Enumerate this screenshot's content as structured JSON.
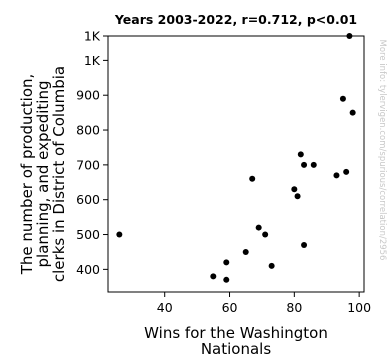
{
  "watermark": "More info: tylervigen.com/spurious/correlation/2956",
  "chart_data": {
    "type": "scatter",
    "title": "Years 2003-2022, r=0.712, p<0.01",
    "xlabel": [
      "Wins for the Washington",
      "Nationals"
    ],
    "ylabel": [
      "The number of production,",
      "planning, and expediting",
      "clerks in District of Columbia"
    ],
    "xlim": [
      22.5,
      101.5
    ],
    "ylim": [
      335,
      1070
    ],
    "xticks": [
      {
        "value": 40,
        "label": "40"
      },
      {
        "value": 60,
        "label": "60"
      },
      {
        "value": 80,
        "label": "80"
      },
      {
        "value": 100,
        "label": "100"
      }
    ],
    "yticks": [
      {
        "value": 400,
        "label": "400"
      },
      {
        "value": 500,
        "label": "500"
      },
      {
        "value": 600,
        "label": "600"
      },
      {
        "value": 700,
        "label": "700"
      },
      {
        "value": 800,
        "label": "800"
      },
      {
        "value": 900,
        "label": "900"
      },
      {
        "value": 1000,
        "label": "1K"
      },
      {
        "value": 1100,
        "label": "1K"
      }
    ],
    "grid": false,
    "marker_color": "#000000",
    "points": [
      {
        "x": 26,
        "y": 500
      },
      {
        "x": 55,
        "y": 380
      },
      {
        "x": 59,
        "y": 370
      },
      {
        "x": 59,
        "y": 420
      },
      {
        "x": 65,
        "y": 450
      },
      {
        "x": 67,
        "y": 660
      },
      {
        "x": 69,
        "y": 520
      },
      {
        "x": 71,
        "y": 500
      },
      {
        "x": 73,
        "y": 410
      },
      {
        "x": 80,
        "y": 630
      },
      {
        "x": 81,
        "y": 610
      },
      {
        "x": 82,
        "y": 730
      },
      {
        "x": 83,
        "y": 700
      },
      {
        "x": 83,
        "y": 470
      },
      {
        "x": 86,
        "y": 700
      },
      {
        "x": 93,
        "y": 670
      },
      {
        "x": 95,
        "y": 890
      },
      {
        "x": 96,
        "y": 680
      },
      {
        "x": 97,
        "y": 1070
      },
      {
        "x": 98,
        "y": 850
      }
    ]
  }
}
